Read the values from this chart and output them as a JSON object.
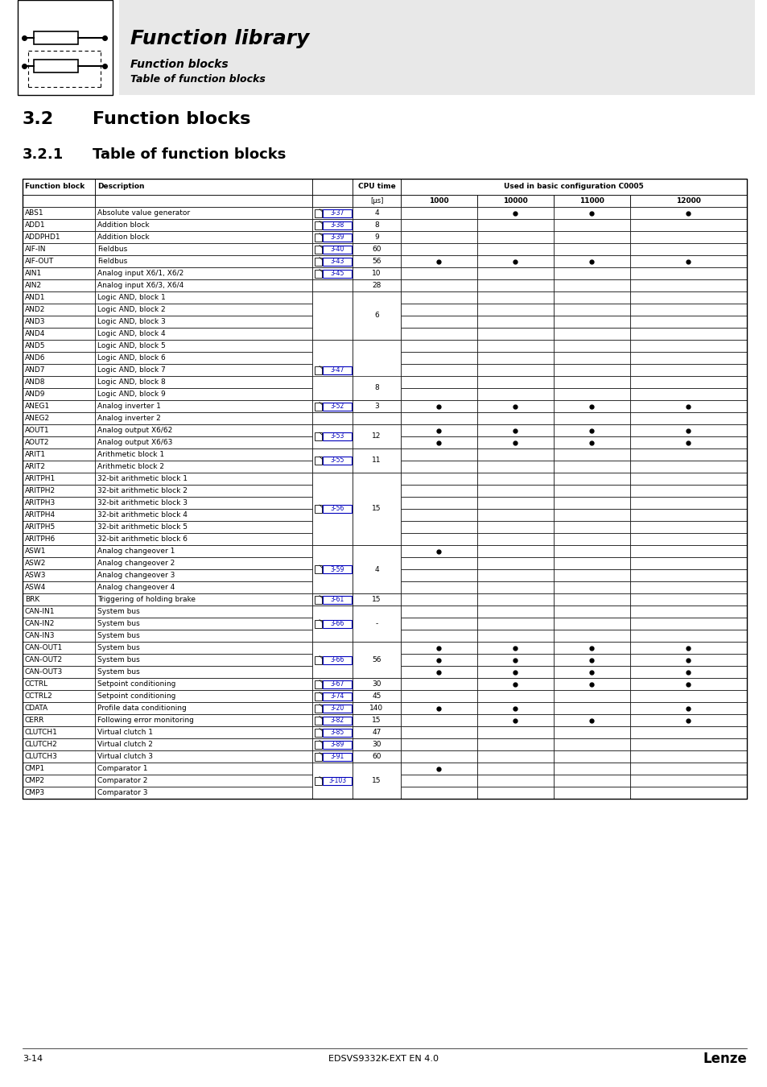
{
  "title_main": "Function library",
  "subtitle1": "Function blocks",
  "subtitle2": "Table of function blocks",
  "section_num": "3.2",
  "section_title": "Function blocks",
  "subsection_num": "3.2.1",
  "subsection_title": "Table of function blocks",
  "footer_left": "3-14",
  "footer_center": "EDSVS9332K-EXT EN 4.0",
  "footer_right": "Lenze",
  "rows": [
    [
      "ABS1",
      "Absolute value generator",
      "3-37",
      "4",
      "",
      "•",
      "•",
      "•"
    ],
    [
      "ADD1",
      "Addition block",
      "3-38",
      "8",
      "",
      "",
      "",
      ""
    ],
    [
      "ADDPHD1",
      "Addition block",
      "3-39",
      "9",
      "",
      "",
      "",
      ""
    ],
    [
      "AIF-IN",
      "Fieldbus",
      "3-40",
      "60",
      "",
      "",
      "",
      ""
    ],
    [
      "AIF-OUT",
      "Fieldbus",
      "3-43",
      "56",
      "•",
      "•",
      "•",
      "•"
    ],
    [
      "AIN1",
      "Analog input X6/1, X6/2",
      "3-45",
      "10",
      "",
      "",
      "",
      ""
    ],
    [
      "AIN2",
      "Analog input X6/3, X6/4",
      "",
      "28",
      "",
      "",
      "",
      ""
    ],
    [
      "AND1",
      "Logic AND, block 1",
      "",
      "",
      "",
      "",
      "",
      ""
    ],
    [
      "AND2",
      "Logic AND, block 2",
      "",
      "",
      "",
      "",
      "",
      ""
    ],
    [
      "AND3",
      "Logic AND, block 3",
      "",
      "",
      "",
      "",
      "",
      ""
    ],
    [
      "AND4",
      "Logic AND, block 4",
      "",
      "6",
      "",
      "",
      "",
      ""
    ],
    [
      "AND5",
      "Logic AND, block 5",
      "3-47",
      "",
      "",
      "",
      "",
      ""
    ],
    [
      "AND6",
      "Logic AND, block 6",
      "",
      "",
      "",
      "",
      "",
      ""
    ],
    [
      "AND7",
      "Logic AND, block 7",
      "",
      "",
      "",
      "",
      "",
      ""
    ],
    [
      "AND8",
      "Logic AND, block 8",
      "",
      "8",
      "",
      "",
      "",
      ""
    ],
    [
      "AND9",
      "Logic AND, block 9",
      "",
      "",
      "",
      "",
      "",
      ""
    ],
    [
      "ANEG1",
      "Analog inverter 1",
      "3-52",
      "3",
      "•",
      "•",
      "•",
      "•"
    ],
    [
      "ANEG2",
      "Analog inverter 2",
      "",
      "",
      "",
      "",
      "",
      ""
    ],
    [
      "AOUT1",
      "Analog output X6/62",
      "3-53",
      "12",
      "•",
      "•",
      "•",
      "•"
    ],
    [
      "AOUT2",
      "Analog output X6/63",
      "",
      "",
      "•",
      "•",
      "•",
      "•"
    ],
    [
      "ARIT1",
      "Arithmetic block 1",
      "3-55",
      "11",
      "",
      "",
      "",
      ""
    ],
    [
      "ARIT2",
      "Arithmetic block 2",
      "",
      "",
      "",
      "",
      "",
      ""
    ],
    [
      "ARITPH1",
      "32-bit arithmetic block 1",
      "",
      "",
      "",
      "",
      "",
      ""
    ],
    [
      "ARITPH2",
      "32-bit arithmetic block 2",
      "",
      "",
      "",
      "",
      "",
      ""
    ],
    [
      "ARITPH3",
      "32-bit arithmetic block 3",
      "3-56",
      "15",
      "",
      "",
      "",
      ""
    ],
    [
      "ARITPH4",
      "32-bit arithmetic block 4",
      "",
      "",
      "",
      "",
      "",
      ""
    ],
    [
      "ARITPH5",
      "32-bit arithmetic block 5",
      "",
      "",
      "",
      "",
      "",
      ""
    ],
    [
      "ARITPH6",
      "32-bit arithmetic block 6",
      "",
      "",
      "",
      "",
      "",
      ""
    ],
    [
      "ASW1",
      "Analog changeover 1",
      "",
      "",
      "•",
      "",
      "",
      ""
    ],
    [
      "ASW2",
      "Analog changeover 2",
      "3-59",
      "4",
      "",
      "",
      "",
      ""
    ],
    [
      "ASW3",
      "Analog changeover 3",
      "",
      "",
      "",
      "",
      "",
      ""
    ],
    [
      "ASW4",
      "Analog changeover 4",
      "",
      "",
      "",
      "",
      "",
      ""
    ],
    [
      "BRK",
      "Triggering of holding brake",
      "3-61",
      "15",
      "",
      "",
      "",
      ""
    ],
    [
      "CAN-IN1",
      "System bus",
      "",
      "",
      "",
      "",
      "",
      ""
    ],
    [
      "CAN-IN2",
      "System bus",
      "3-66",
      "-",
      "",
      "",
      "",
      ""
    ],
    [
      "CAN-IN3",
      "System bus",
      "",
      "",
      "",
      "",
      "",
      ""
    ],
    [
      "CAN-OUT1",
      "System bus",
      "",
      "",
      "•",
      "•",
      "•",
      "•"
    ],
    [
      "CAN-OUT2",
      "System bus",
      "3-66",
      "56",
      "•",
      "•",
      "•",
      "•"
    ],
    [
      "CAN-OUT3",
      "System bus",
      "",
      "",
      "•",
      "•",
      "•",
      "•"
    ],
    [
      "CCTRL",
      "Setpoint conditioning",
      "3-67",
      "30",
      "",
      "•",
      "•",
      "•"
    ],
    [
      "CCTRL2",
      "Setpoint conditioning",
      "3-74",
      "45",
      "",
      "",
      "",
      ""
    ],
    [
      "CDATA",
      "Profile data conditioning",
      "3-20",
      "140",
      "•",
      "•",
      "",
      "•"
    ],
    [
      "CERR",
      "Following error monitoring",
      "3-82",
      "15",
      "",
      "•",
      "•",
      "•"
    ],
    [
      "CLUTCH1",
      "Virtual clutch 1",
      "3-85",
      "47",
      "",
      "",
      "",
      ""
    ],
    [
      "CLUTCH2",
      "Virtual clutch 2",
      "3-89",
      "30",
      "",
      "",
      "",
      ""
    ],
    [
      "CLUTCH3",
      "Virtual clutch 3",
      "3-91",
      "60",
      "",
      "",
      "",
      ""
    ],
    [
      "CMP1",
      "Comparator 1",
      "",
      "",
      "•",
      "",
      "",
      ""
    ],
    [
      "CMP2",
      "Comparator 2",
      "3-103",
      "15",
      "",
      "",
      "",
      ""
    ],
    [
      "CMP3",
      "Comparator 3",
      "",
      "15",
      "",
      "",
      "",
      ""
    ]
  ],
  "merge_groups": [
    [
      0,
      0,
      "3-37",
      "4"
    ],
    [
      1,
      1,
      "3-38",
      "8"
    ],
    [
      2,
      2,
      "3-39",
      "9"
    ],
    [
      3,
      3,
      "3-40",
      "60"
    ],
    [
      4,
      4,
      "3-43",
      "56"
    ],
    [
      5,
      5,
      "3-45",
      "10"
    ],
    [
      6,
      6,
      "",
      "28"
    ],
    [
      7,
      10,
      "",
      "6"
    ],
    [
      11,
      15,
      "3-47",
      ""
    ],
    [
      14,
      15,
      "",
      "8"
    ],
    [
      16,
      16,
      "3-52",
      "3"
    ],
    [
      17,
      17,
      "",
      ""
    ],
    [
      18,
      19,
      "3-53",
      "12"
    ],
    [
      20,
      21,
      "3-55",
      "11"
    ],
    [
      22,
      27,
      "3-56",
      "15"
    ],
    [
      28,
      31,
      "3-59",
      "4"
    ],
    [
      32,
      32,
      "3-61",
      "15"
    ],
    [
      33,
      35,
      "3-66",
      "-"
    ],
    [
      36,
      38,
      "3-66",
      "56"
    ],
    [
      39,
      39,
      "3-67",
      "30"
    ],
    [
      40,
      40,
      "3-74",
      "45"
    ],
    [
      41,
      41,
      "3-20",
      "140"
    ],
    [
      42,
      42,
      "3-82",
      "15"
    ],
    [
      43,
      43,
      "3-85",
      "47"
    ],
    [
      44,
      44,
      "3-89",
      "30"
    ],
    [
      45,
      45,
      "3-91",
      "60"
    ],
    [
      46,
      48,
      "3-103",
      "15"
    ]
  ]
}
